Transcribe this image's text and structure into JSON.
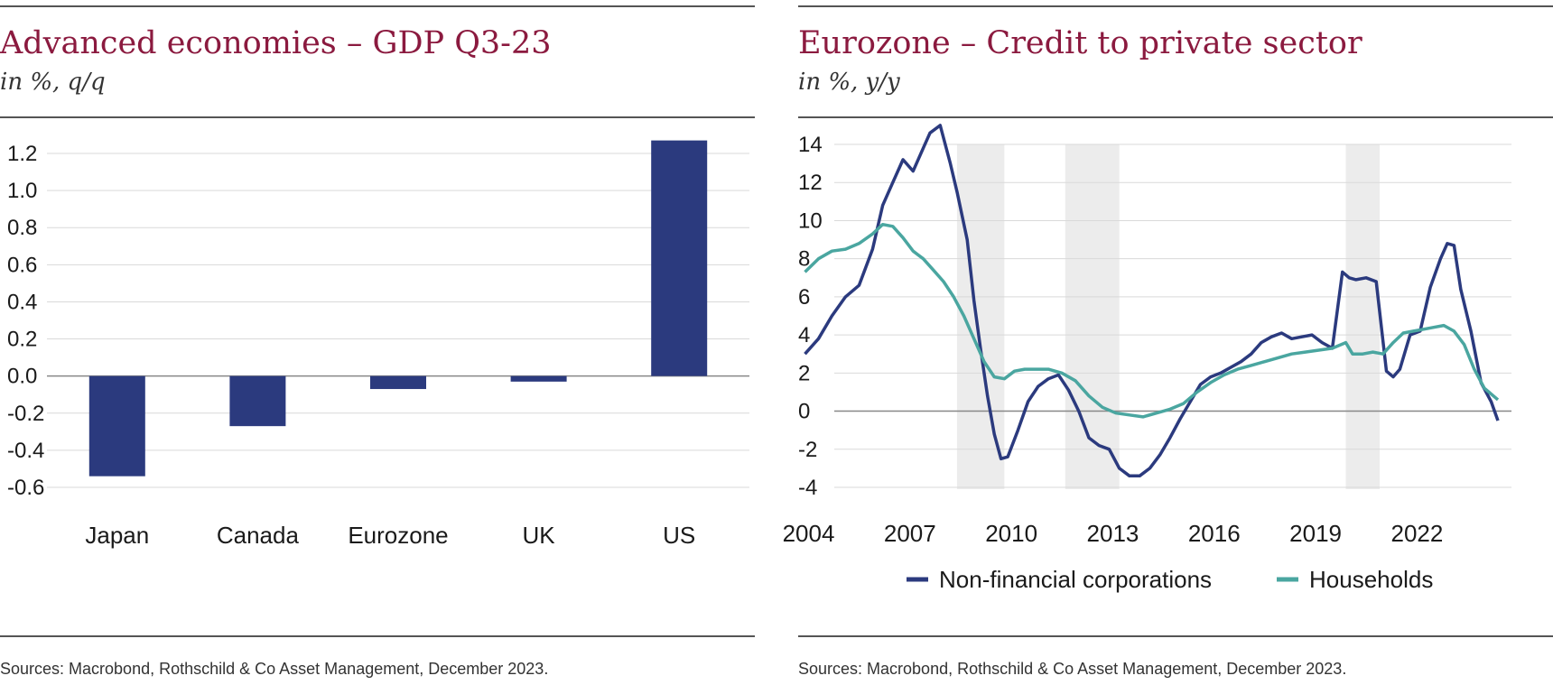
{
  "colors": {
    "title": "#8b1a3f",
    "bar": "#2b3a7e",
    "nfc": "#2b3a7e",
    "households": "#4aa6a0",
    "shade": "#ececec",
    "grid": "#d9d9d9"
  },
  "left": {
    "title": "Advanced economies – GDP Q3-23",
    "subtitle": "in %, q/q",
    "source": "Sources: Macrobond, Rothschild & Co Asset Management, December 2023."
  },
  "right": {
    "title": "Eurozone – Credit to private sector",
    "subtitle": "in %, y/y",
    "source": "Sources: Macrobond, Rothschild & Co Asset Management, December 2023."
  },
  "chart_data": [
    {
      "type": "bar",
      "title": "Advanced economies – GDP Q3-23",
      "subtitle": "in %, q/q",
      "categories": [
        "Japan",
        "Canada",
        "Eurozone",
        "UK",
        "US"
      ],
      "values": [
        -0.54,
        -0.27,
        -0.07,
        -0.03,
        1.27
      ],
      "ylim": [
        -0.6,
        1.2
      ],
      "yticks": [
        1.2,
        1.0,
        0.8,
        0.6,
        0.4,
        0.2,
        0.0,
        -0.2,
        -0.4,
        -0.6
      ],
      "ytick_labels": [
        "1.2",
        "1.0",
        "0.8",
        "0.6",
        "0.4",
        "0.2",
        "0.0",
        "-0.2",
        "-0.4",
        "-0.6"
      ],
      "grid": true
    },
    {
      "type": "line",
      "title": "Eurozone – Credit to private sector",
      "subtitle": "in %, y/y",
      "xlim": [
        2003.8,
        2024.9
      ],
      "ylim": [
        -4,
        14
      ],
      "xticks": [
        2004,
        2007,
        2010,
        2013,
        2016,
        2019,
        2022
      ],
      "xtick_labels": [
        "2004",
        "2007",
        "2010",
        "2013",
        "2016",
        "2019",
        "2022"
      ],
      "yticks": [
        14,
        12,
        10,
        8,
        6,
        4,
        2,
        0,
        -2,
        -4
      ],
      "ytick_labels": [
        "14",
        "12",
        "10",
        "8",
        "6",
        "4",
        "2",
        "0",
        "-2",
        "-4"
      ],
      "recession_shading": [
        [
          2008.5,
          2009.9
        ],
        [
          2011.7,
          2013.3
        ],
        [
          2020.0,
          2021.0
        ]
      ],
      "legend_position": "bottom",
      "grid": true,
      "series": [
        {
          "name": "Non-financial corporations",
          "x": [
            2004.0,
            2004.4,
            2004.8,
            2005.2,
            2005.6,
            2006.0,
            2006.3,
            2006.6,
            2006.9,
            2007.2,
            2007.5,
            2007.7,
            2008.0,
            2008.3,
            2008.5,
            2008.8,
            2009.0,
            2009.2,
            2009.4,
            2009.6,
            2009.8,
            2010.0,
            2010.3,
            2010.6,
            2010.9,
            2011.2,
            2011.5,
            2011.8,
            2012.1,
            2012.4,
            2012.7,
            2013.0,
            2013.3,
            2013.6,
            2013.9,
            2014.2,
            2014.5,
            2014.8,
            2015.1,
            2015.4,
            2015.7,
            2016.0,
            2016.3,
            2016.6,
            2016.9,
            2017.2,
            2017.5,
            2017.8,
            2018.1,
            2018.4,
            2018.7,
            2019.0,
            2019.3,
            2019.6,
            2019.9,
            2020.1,
            2020.3,
            2020.6,
            2020.9,
            2021.2,
            2021.4,
            2021.6,
            2021.9,
            2022.2,
            2022.5,
            2022.8,
            2023.0,
            2023.2,
            2023.4,
            2023.7,
            2024.0,
            2024.3,
            2024.5
          ],
          "values": [
            3.0,
            3.8,
            5.0,
            6.0,
            6.6,
            8.5,
            10.8,
            12.0,
            13.2,
            12.6,
            13.8,
            14.6,
            15.0,
            13.0,
            11.5,
            9.0,
            5.8,
            3.2,
            0.8,
            -1.2,
            -2.5,
            -2.4,
            -1.0,
            0.5,
            1.3,
            1.7,
            1.9,
            1.1,
            0.0,
            -1.4,
            -1.8,
            -2.0,
            -3.0,
            -3.4,
            -3.4,
            -3.0,
            -2.3,
            -1.4,
            -0.4,
            0.5,
            1.4,
            1.8,
            2.0,
            2.3,
            2.6,
            3.0,
            3.6,
            3.9,
            4.1,
            3.8,
            3.9,
            4.0,
            3.6,
            3.3,
            7.3,
            7.0,
            6.9,
            7.0,
            6.8,
            2.1,
            1.8,
            2.2,
            4.0,
            4.2,
            6.5,
            8.0,
            8.8,
            8.7,
            6.4,
            4.2,
            1.5,
            0.5,
            -0.5
          ]
        },
        {
          "name": "Households",
          "x": [
            2004.0,
            2004.4,
            2004.8,
            2005.2,
            2005.6,
            2006.0,
            2006.3,
            2006.6,
            2006.9,
            2007.2,
            2007.5,
            2007.8,
            2008.1,
            2008.4,
            2008.7,
            2009.0,
            2009.3,
            2009.6,
            2009.9,
            2010.2,
            2010.5,
            2010.8,
            2011.2,
            2011.6,
            2012.0,
            2012.4,
            2012.8,
            2013.2,
            2013.6,
            2014.0,
            2014.4,
            2014.8,
            2015.2,
            2015.6,
            2016.0,
            2016.4,
            2016.8,
            2017.2,
            2017.6,
            2018.0,
            2018.4,
            2018.8,
            2019.2,
            2019.6,
            2020.0,
            2020.2,
            2020.5,
            2020.8,
            2021.1,
            2021.4,
            2021.7,
            2022.0,
            2022.3,
            2022.6,
            2022.9,
            2023.2,
            2023.5,
            2023.8,
            2024.1,
            2024.5
          ],
          "values": [
            7.3,
            8.0,
            8.4,
            8.5,
            8.8,
            9.3,
            9.8,
            9.7,
            9.1,
            8.4,
            8.0,
            7.4,
            6.8,
            6.0,
            5.0,
            3.8,
            2.6,
            1.8,
            1.7,
            2.1,
            2.2,
            2.2,
            2.2,
            2.0,
            1.6,
            0.8,
            0.2,
            -0.1,
            -0.2,
            -0.3,
            -0.1,
            0.1,
            0.4,
            1.0,
            1.5,
            1.9,
            2.2,
            2.4,
            2.6,
            2.8,
            3.0,
            3.1,
            3.2,
            3.3,
            3.6,
            3.0,
            3.0,
            3.1,
            3.0,
            3.6,
            4.1,
            4.2,
            4.3,
            4.4,
            4.5,
            4.2,
            3.5,
            2.2,
            1.2,
            0.6
          ]
        }
      ]
    }
  ]
}
